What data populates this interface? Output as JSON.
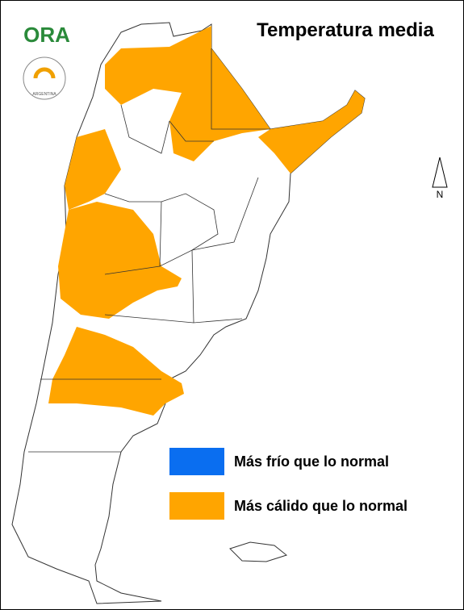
{
  "title": "Temperatura media",
  "logo": {
    "name": "ORA",
    "ring": "ARGENTINA"
  },
  "north_arrow": {
    "label": "N"
  },
  "legend": {
    "items": [
      {
        "label": "Más frío que lo normal",
        "color": "#0a6ef0"
      },
      {
        "label": "Más cálido que lo normal",
        "color": "#ffa500"
      }
    ]
  }
}
